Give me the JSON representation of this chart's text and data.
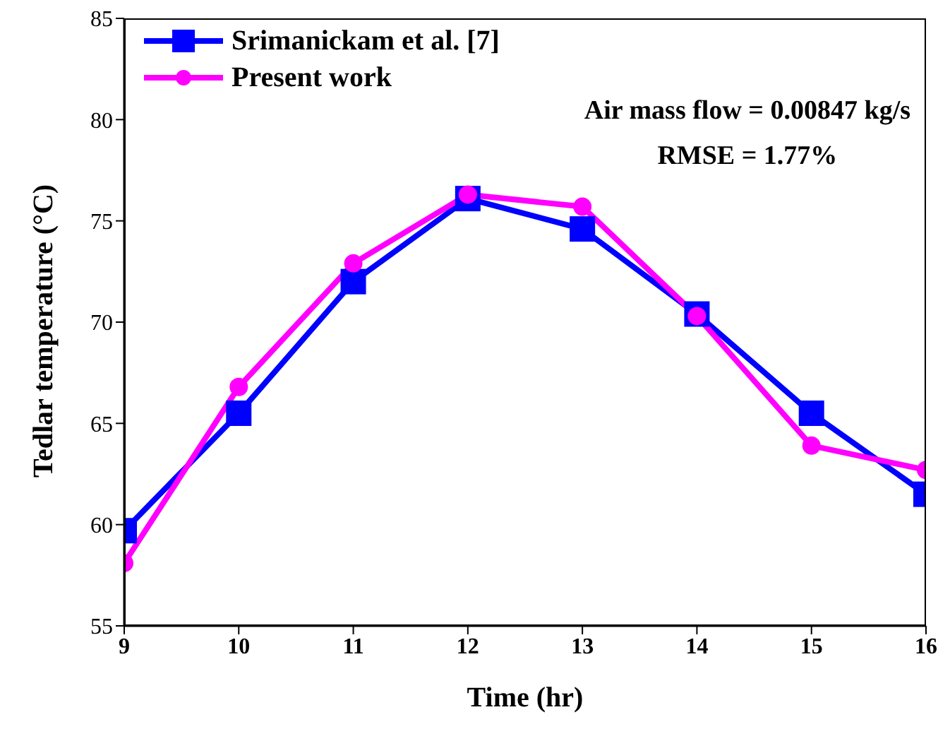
{
  "chart_data": {
    "type": "line",
    "xlabel": "Time (hr)",
    "ylabel": "Tedlar temperature (°C)",
    "x": [
      9,
      10,
      11,
      12,
      13,
      14,
      15,
      16
    ],
    "series": [
      {
        "name": "Srimanickam et al. [7]",
        "color": "#0000ff",
        "marker": "square",
        "values": [
          59.7,
          65.5,
          72.0,
          76.1,
          74.6,
          70.4,
          65.5,
          61.5
        ]
      },
      {
        "name": "Present work",
        "color": "#ff00ff",
        "marker": "circle",
        "values": [
          58.1,
          66.8,
          72.9,
          76.3,
          75.7,
          70.3,
          63.9,
          62.7
        ]
      }
    ],
    "xlim": [
      9,
      16
    ],
    "xticks": [
      9,
      10,
      11,
      12,
      13,
      14,
      15,
      16
    ],
    "ylim": [
      55,
      85
    ],
    "yticks": [
      55,
      60,
      65,
      70,
      75,
      80,
      85
    ],
    "annotations": [
      "Air mass flow = 0.00847 kg/s",
      "RMSE = 1.77%"
    ],
    "legend": "top left",
    "grid": false,
    "line_style": "solid"
  }
}
